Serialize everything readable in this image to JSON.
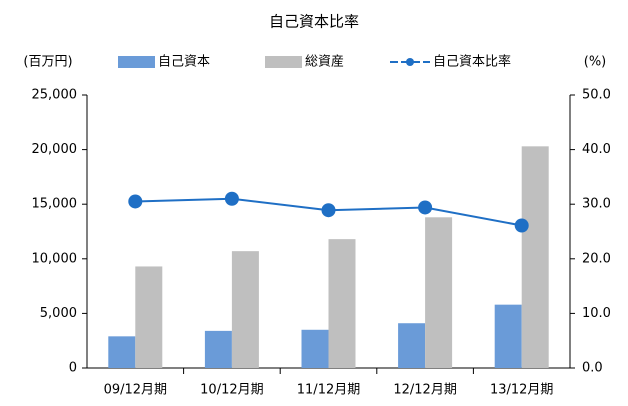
{
  "chart_data": {
    "type": "bar",
    "title": "自己資本比率",
    "y_label": "(百万円)",
    "y2_label": "(%)",
    "categories": [
      "09/12月期",
      "10/12月期",
      "11/12月期",
      "12/12月期",
      "13/12月期"
    ],
    "series": [
      {
        "name": "自己資本",
        "type": "bar",
        "color": "#6a9bd8",
        "values": [
          2900,
          3400,
          3500,
          4100,
          5800
        ]
      },
      {
        "name": "総資産",
        "type": "bar",
        "color": "#bfbfbf",
        "values": [
          9300,
          10700,
          11800,
          13800,
          20300
        ]
      },
      {
        "name": "自己資本比率",
        "type": "line",
        "axis": "y2",
        "color": "#1f6fc5",
        "values": [
          30.5,
          31.0,
          28.9,
          29.4,
          26.1
        ]
      }
    ],
    "ylim": [
      0,
      25000
    ],
    "yticks": [
      0,
      {
        "value": 5000,
        "label": "5,000"
      },
      {
        "value": 10000,
        "label": "10,000"
      },
      {
        "value": 15000,
        "label": "15,000"
      },
      {
        "value": 20000,
        "label": "20,000"
      },
      {
        "value": 25000,
        "label": "25,000"
      }
    ],
    "y2lim": [
      0,
      50
    ],
    "y2ticks": [
      {
        "value": 0,
        "label": "0.0"
      },
      {
        "value": 10,
        "label": "10.0"
      },
      {
        "value": 20,
        "label": "20.0"
      },
      {
        "value": 30,
        "label": "30.0"
      },
      {
        "value": 40,
        "label": "40.0"
      },
      {
        "value": 50,
        "label": "50.0"
      }
    ],
    "legend": "top"
  }
}
